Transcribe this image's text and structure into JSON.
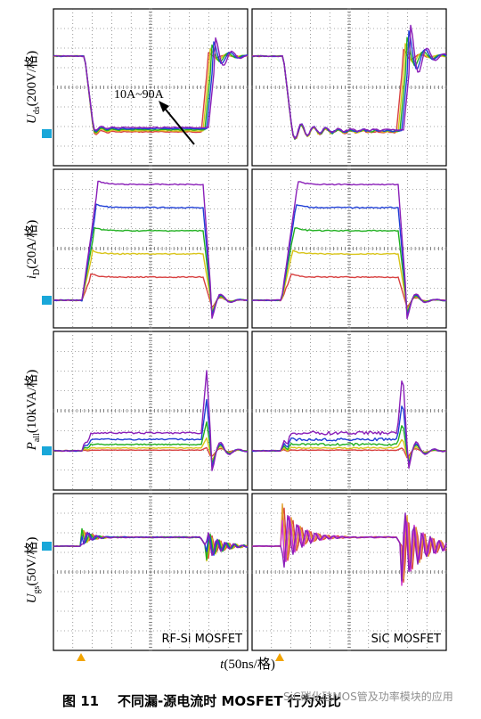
{
  "panel_labels": {
    "left": "RF-Si MOSFET",
    "right": "SiC MOSFET"
  },
  "annotation": "10A~90A",
  "rows": [
    {
      "quantity": "U",
      "subscript": "ds",
      "scale": "(200V/格)"
    },
    {
      "quantity": "i",
      "subscript": "D",
      "scale": "(20A/格)"
    },
    {
      "quantity": "P",
      "subscript": "all",
      "scale": "(10kVA/格)"
    },
    {
      "quantity": "U",
      "subscript": "gs",
      "scale": "(50V/格)"
    }
  ],
  "xaxis": {
    "quantity": "t",
    "scale": "(50ns/格)"
  },
  "caption": {
    "figure": "图 11",
    "text": "不同漏-源电流时 MOSFET 行为对比"
  },
  "watermark": "SiC碳化硅MOS管及功率模块的应用",
  "colors": {
    "purple": "#8a1fb8",
    "blue": "#1f3fd6",
    "green": "#20b020",
    "yellow": "#d8c418",
    "orange": "#e2a030",
    "red": "#d84040",
    "magenta": "#cc33cc",
    "marker_blue": "#19a7d9",
    "marker_orange": "#f2a400"
  },
  "chart_data": {
    "type": "line",
    "x_unit": "50ns/div",
    "series": [
      {
        "name": "10A~90A",
        "levels": [
          "10A",
          "30A",
          "50A",
          "70A",
          "90A"
        ]
      }
    ]
  }
}
